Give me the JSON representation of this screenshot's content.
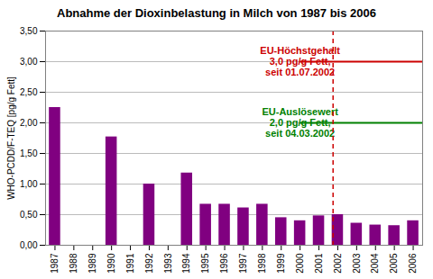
{
  "chart_data": {
    "type": "bar",
    "title": "Abnahme der Dioxinbelastung in Milch von 1987 bis 2006",
    "y_label": "WHO-PCDD/F-TEQ [pg/g Fett]",
    "categories": [
      "1987",
      "1988",
      "1989",
      "1990",
      "1991",
      "1992",
      "1993",
      "1994",
      "1995",
      "1996",
      "1997",
      "1998",
      "1999",
      "2000",
      "2001",
      "2002",
      "2003",
      "2004",
      "2005",
      "2006"
    ],
    "values": [
      2.25,
      null,
      null,
      1.77,
      null,
      1.0,
      null,
      1.18,
      0.67,
      0.67,
      0.61,
      0.67,
      0.45,
      0.4,
      0.48,
      0.5,
      0.36,
      0.33,
      0.32,
      0.4
    ],
    "color": "#800080",
    "ylim": [
      0,
      3.5
    ],
    "yticks": [
      {
        "value": 0,
        "label": "0,00"
      },
      {
        "value": 0.5,
        "label": "0,50"
      },
      {
        "value": 1.0,
        "label": "1,00"
      },
      {
        "value": 1.5,
        "label": "1,50"
      },
      {
        "value": 2.0,
        "label": "2,00"
      },
      {
        "value": 2.5,
        "label": "2,50"
      },
      {
        "value": 3.0,
        "label": "3,00"
      },
      {
        "value": 3.5,
        "label": "3,50"
      }
    ],
    "grid": true,
    "annotations": [
      {
        "type": "hline",
        "y": 3.0,
        "text": "EU-Höchstgehalt\n3,0 pg/g Fett,\nseit 01.07.2002",
        "color": "#cc0000"
      },
      {
        "type": "hline",
        "y": 2.0,
        "text": "EU-Auslösewert\n2,0 pg/g Fett,\nseit 04.03.2002",
        "color": "#008000"
      },
      {
        "type": "vline",
        "x": "2002",
        "color": "#cc0000",
        "line_style": "dashed"
      }
    ]
  }
}
